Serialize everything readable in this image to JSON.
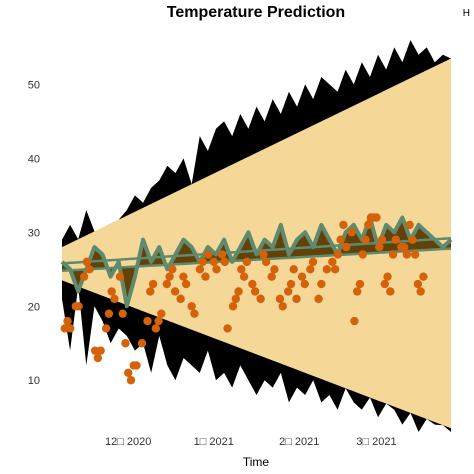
{
  "chart_data": {
    "type": "line",
    "title": "Temperature Prediction",
    "xlabel": "Time",
    "ylabel": "",
    "x_tick_labels": [
      "12\u0000 2020",
      "1\u0000 2021",
      "2\u0000 2021",
      "3\u0000 2021"
    ],
    "x_tick_dates": [
      "2020-12-01",
      "2021-01-01",
      "2021-02-01",
      "2021-03-01"
    ],
    "y_ticks": [
      10,
      20,
      30,
      40,
      50
    ],
    "xlim": [
      "2020-11-07",
      "2021-03-28"
    ],
    "ylim": [
      3,
      56
    ],
    "grid": false,
    "corner_label": "H",
    "colors": {
      "prediction_interval": "#F5D798",
      "extremes": "#000000",
      "confidence_band": "#5E8A6E",
      "confidence_inner": "#5A3A00",
      "observed_points": "#D4620A"
    },
    "prediction_interval": {
      "x": [
        "2020-11-07",
        "2021-03-28"
      ],
      "lower": [
        23.5,
        3.5
      ],
      "upper": [
        28.0,
        53.5
      ]
    },
    "confidence_band": {
      "x": [
        "2020-11-07",
        "2021-03-28"
      ],
      "lower": [
        24.8,
        27.8
      ],
      "upper": [
        25.8,
        29.2
      ]
    },
    "upper_extreme": [
      29,
      31,
      22,
      33,
      26,
      28,
      31,
      30,
      33,
      35,
      34,
      36,
      37,
      39,
      38,
      40,
      32,
      43,
      41,
      44,
      45,
      43,
      46,
      44,
      47,
      45,
      48,
      46,
      49,
      47,
      50,
      48,
      51,
      50,
      49,
      52,
      50,
      53,
      51,
      54,
      52,
      55,
      53,
      56,
      54,
      55,
      53,
      54,
      53
    ],
    "lower_extreme": [
      21,
      14,
      23,
      12,
      20,
      18,
      15,
      17,
      16,
      14,
      15,
      11,
      16,
      12,
      10,
      13,
      12,
      11,
      14,
      10,
      11,
      9,
      12,
      10,
      8,
      10,
      9,
      11,
      7,
      9,
      8,
      10,
      7,
      8,
      6,
      9,
      7,
      6,
      8,
      5,
      7,
      6,
      4,
      6,
      3,
      5,
      4,
      4,
      3
    ],
    "mean_line": [
      26,
      25,
      22,
      25,
      28,
      27,
      24,
      26,
      20,
      24,
      29,
      26,
      28,
      25,
      27,
      29,
      28,
      26,
      28,
      27,
      29,
      26,
      28,
      30,
      27,
      29,
      28,
      31,
      27,
      29,
      30,
      28,
      31,
      29,
      27,
      30,
      31,
      29,
      32,
      28,
      31,
      30,
      32,
      29,
      31,
      30,
      29,
      28,
      29
    ],
    "observed": [
      [
        "2020-11-08",
        17
      ],
      [
        "2020-11-09",
        18
      ],
      [
        "2020-11-10",
        17
      ],
      [
        "2020-11-12",
        20
      ],
      [
        "2020-11-13",
        20
      ],
      [
        "2020-11-15",
        24
      ],
      [
        "2020-11-16",
        26
      ],
      [
        "2020-11-17",
        25
      ],
      [
        "2020-11-19",
        14
      ],
      [
        "2020-11-20",
        13
      ],
      [
        "2020-11-21",
        14
      ],
      [
        "2020-11-23",
        17
      ],
      [
        "2020-11-24",
        19
      ],
      [
        "2020-11-25",
        22
      ],
      [
        "2020-11-26",
        21
      ],
      [
        "2020-11-28",
        24
      ],
      [
        "2020-11-29",
        19
      ],
      [
        "2020-11-30",
        15
      ],
      [
        "2020-12-01",
        11
      ],
      [
        "2020-12-02",
        10
      ],
      [
        "2020-12-03",
        12
      ],
      [
        "2020-12-04",
        12
      ],
      [
        "2020-12-06",
        15
      ],
      [
        "2020-12-08",
        18
      ],
      [
        "2020-12-09",
        22
      ],
      [
        "2020-12-10",
        23
      ],
      [
        "2020-12-11",
        17
      ],
      [
        "2020-12-12",
        18
      ],
      [
        "2020-12-13",
        19
      ],
      [
        "2020-12-15",
        23
      ],
      [
        "2020-12-16",
        24
      ],
      [
        "2020-12-17",
        25
      ],
      [
        "2020-12-18",
        22
      ],
      [
        "2020-12-20",
        21
      ],
      [
        "2020-12-21",
        24
      ],
      [
        "2020-12-22",
        23
      ],
      [
        "2020-12-24",
        20
      ],
      [
        "2020-12-25",
        19
      ],
      [
        "2020-12-27",
        25
      ],
      [
        "2020-12-28",
        26
      ],
      [
        "2020-12-29",
        24
      ],
      [
        "2020-12-30",
        27
      ],
      [
        "2021-01-01",
        26
      ],
      [
        "2021-01-02",
        25
      ],
      [
        "2021-01-04",
        27
      ],
      [
        "2021-01-05",
        26
      ],
      [
        "2021-01-06",
        17
      ],
      [
        "2021-01-08",
        20
      ],
      [
        "2021-01-09",
        21
      ],
      [
        "2021-01-10",
        22
      ],
      [
        "2021-01-11",
        25
      ],
      [
        "2021-01-12",
        24
      ],
      [
        "2021-01-13",
        26
      ],
      [
        "2021-01-15",
        23
      ],
      [
        "2021-01-16",
        22
      ],
      [
        "2021-01-18",
        21
      ],
      [
        "2021-01-19",
        27
      ],
      [
        "2021-01-20",
        26
      ],
      [
        "2021-01-22",
        24
      ],
      [
        "2021-01-23",
        25
      ],
      [
        "2021-01-25",
        21
      ],
      [
        "2021-01-26",
        20
      ],
      [
        "2021-01-28",
        22
      ],
      [
        "2021-01-29",
        23
      ],
      [
        "2021-01-30",
        25
      ],
      [
        "2021-01-31",
        21
      ],
      [
        "2021-02-02",
        24
      ],
      [
        "2021-02-03",
        23
      ],
      [
        "2021-02-05",
        25
      ],
      [
        "2021-02-06",
        26
      ],
      [
        "2021-02-08",
        21
      ],
      [
        "2021-02-09",
        23
      ],
      [
        "2021-02-11",
        25
      ],
      [
        "2021-02-13",
        26
      ],
      [
        "2021-02-14",
        25
      ],
      [
        "2021-02-15",
        27
      ],
      [
        "2021-02-16",
        29
      ],
      [
        "2021-02-17",
        31
      ],
      [
        "2021-02-18",
        28
      ],
      [
        "2021-02-20",
        30
      ],
      [
        "2021-02-21",
        18
      ],
      [
        "2021-02-22",
        22
      ],
      [
        "2021-02-23",
        23
      ],
      [
        "2021-02-24",
        27
      ],
      [
        "2021-02-25",
        29
      ],
      [
        "2021-02-26",
        31
      ],
      [
        "2021-02-27",
        32
      ],
      [
        "2021-02-28",
        32
      ],
      [
        "2021-03-01",
        32
      ],
      [
        "2021-03-02",
        28
      ],
      [
        "2021-03-03",
        29
      ],
      [
        "2021-03-04",
        23
      ],
      [
        "2021-03-05",
        24
      ],
      [
        "2021-03-06",
        22
      ],
      [
        "2021-03-07",
        27
      ],
      [
        "2021-03-08",
        29
      ],
      [
        "2021-03-10",
        28
      ],
      [
        "2021-03-11",
        28
      ],
      [
        "2021-03-12",
        27
      ],
      [
        "2021-03-13",
        31
      ],
      [
        "2021-03-14",
        29
      ],
      [
        "2021-03-15",
        27
      ],
      [
        "2021-03-16",
        23
      ],
      [
        "2021-03-17",
        22
      ],
      [
        "2021-03-18",
        24
      ]
    ]
  }
}
